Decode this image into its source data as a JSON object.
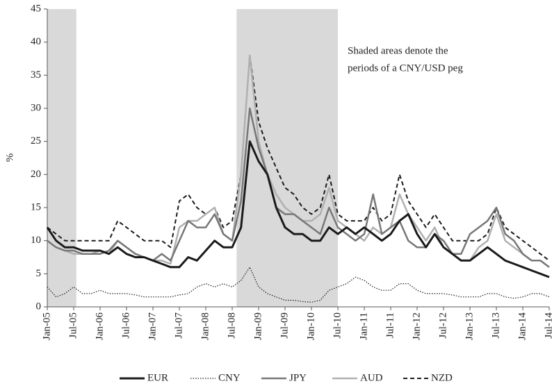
{
  "chart_data": {
    "type": "line",
    "y_label": "%",
    "annotation": [
      "Shaded areas denote the",
      "periods of a CNY/USD peg"
    ],
    "shaded_periods": [
      [
        0,
        3.3
      ],
      [
        21.5,
        33
      ]
    ],
    "categories": [
      "Jan-05",
      null,
      null,
      "Jul-05",
      null,
      null,
      "Jan-06",
      null,
      null,
      "Jul-06",
      null,
      null,
      "Jan-07",
      null,
      null,
      "Jul-07",
      null,
      null,
      "Jan-08",
      null,
      null,
      "Jul-08",
      null,
      null,
      "Jan-09",
      null,
      null,
      "Jul-09",
      null,
      null,
      "Jan-10",
      null,
      null,
      "Jul-10",
      null,
      null,
      "Jan-11",
      null,
      null,
      "Jul-11",
      null,
      null,
      "Jan-12",
      null,
      null,
      "Jul-12",
      null,
      null,
      "Jan-13",
      null,
      null,
      "Jul-13",
      null,
      null,
      "Jan-14",
      null,
      null,
      "Jul-14"
    ],
    "series": [
      {
        "name": "EUR",
        "color": "#1a1a1a",
        "style": "solid",
        "width": 3,
        "values": [
          12,
          10,
          9,
          9,
          8.5,
          8.5,
          8.5,
          8,
          9,
          8,
          7.5,
          7.5,
          7,
          6.5,
          6,
          6,
          7.5,
          7,
          8.5,
          10,
          9,
          9,
          12,
          25,
          22,
          20,
          15,
          12,
          11,
          11,
          10,
          10,
          12,
          11,
          12,
          11,
          12,
          11,
          10,
          11,
          13,
          14,
          11,
          9,
          11,
          9,
          8,
          7,
          7,
          8,
          9,
          8,
          7,
          6.5,
          6,
          5.5,
          5,
          4.5
        ]
      },
      {
        "name": "CNY",
        "color": "#1a1a1a",
        "style": "dotted",
        "width": 1.2,
        "values": [
          3,
          1.5,
          2,
          3,
          2,
          2,
          2.5,
          2,
          2,
          2,
          1.8,
          1.5,
          1.5,
          1.5,
          1.5,
          1.8,
          2,
          3,
          3.5,
          3,
          3.5,
          3,
          4,
          6,
          3,
          2,
          1.5,
          1,
          1,
          0.8,
          0.7,
          1,
          2.5,
          3,
          3.5,
          4.5,
          4,
          3,
          2.5,
          2.5,
          3.5,
          3.5,
          2.5,
          2,
          2,
          2,
          1.8,
          1.5,
          1.5,
          1.5,
          2,
          2,
          1.5,
          1.3,
          1.5,
          2,
          2,
          1.5
        ]
      },
      {
        "name": "JPY",
        "color": "#777777",
        "style": "solid",
        "width": 2.5,
        "values": [
          10,
          9,
          8.5,
          8.5,
          8,
          8,
          8,
          8.5,
          10,
          9,
          8,
          7.5,
          7,
          8,
          7,
          10,
          13,
          12,
          12,
          14,
          11,
          10,
          16,
          30,
          24,
          20,
          15,
          14,
          14,
          13,
          12,
          11,
          15,
          12,
          11,
          10,
          11,
          17,
          11,
          12,
          13,
          10,
          9,
          9,
          11,
          10,
          8,
          8,
          11,
          12,
          13,
          15,
          11,
          10,
          8,
          7,
          7,
          6
        ]
      },
      {
        "name": "AUD",
        "color": "#b0b0b0",
        "style": "solid",
        "width": 2.5,
        "values": [
          10,
          9,
          8.5,
          8,
          8,
          8,
          8.5,
          8,
          10,
          9,
          8,
          7.5,
          7,
          7,
          6.5,
          12,
          13,
          13,
          14,
          15,
          11,
          10,
          20,
          38,
          25,
          20,
          17,
          15,
          14,
          13,
          13,
          14,
          18,
          13,
          12,
          11,
          10,
          12,
          11,
          12,
          17,
          14,
          12,
          10,
          12,
          9,
          8,
          7,
          7,
          9,
          10,
          14,
          10,
          9,
          8,
          7,
          7,
          6
        ]
      },
      {
        "name": "NZD",
        "color": "#1a1a1a",
        "style": "dashed",
        "width": 2,
        "values": [
          12,
          11,
          10,
          10,
          10,
          10,
          10,
          10,
          13,
          12,
          11,
          10,
          10,
          10,
          9,
          16,
          17,
          15,
          14,
          15,
          12,
          13,
          20,
          38,
          28,
          24,
          21,
          18,
          17,
          15,
          14,
          15,
          20,
          14,
          13,
          13,
          13,
          15,
          13,
          14,
          20,
          16,
          14,
          12,
          14,
          12,
          10,
          10,
          10,
          10,
          11,
          15,
          12,
          11,
          10,
          9,
          8,
          7
        ]
      }
    ],
    "ylim": [
      0,
      45
    ],
    "yticks": [
      0,
      5,
      10,
      15,
      20,
      25,
      30,
      35,
      40,
      45
    ],
    "shade_color": "#d9d9d9"
  }
}
